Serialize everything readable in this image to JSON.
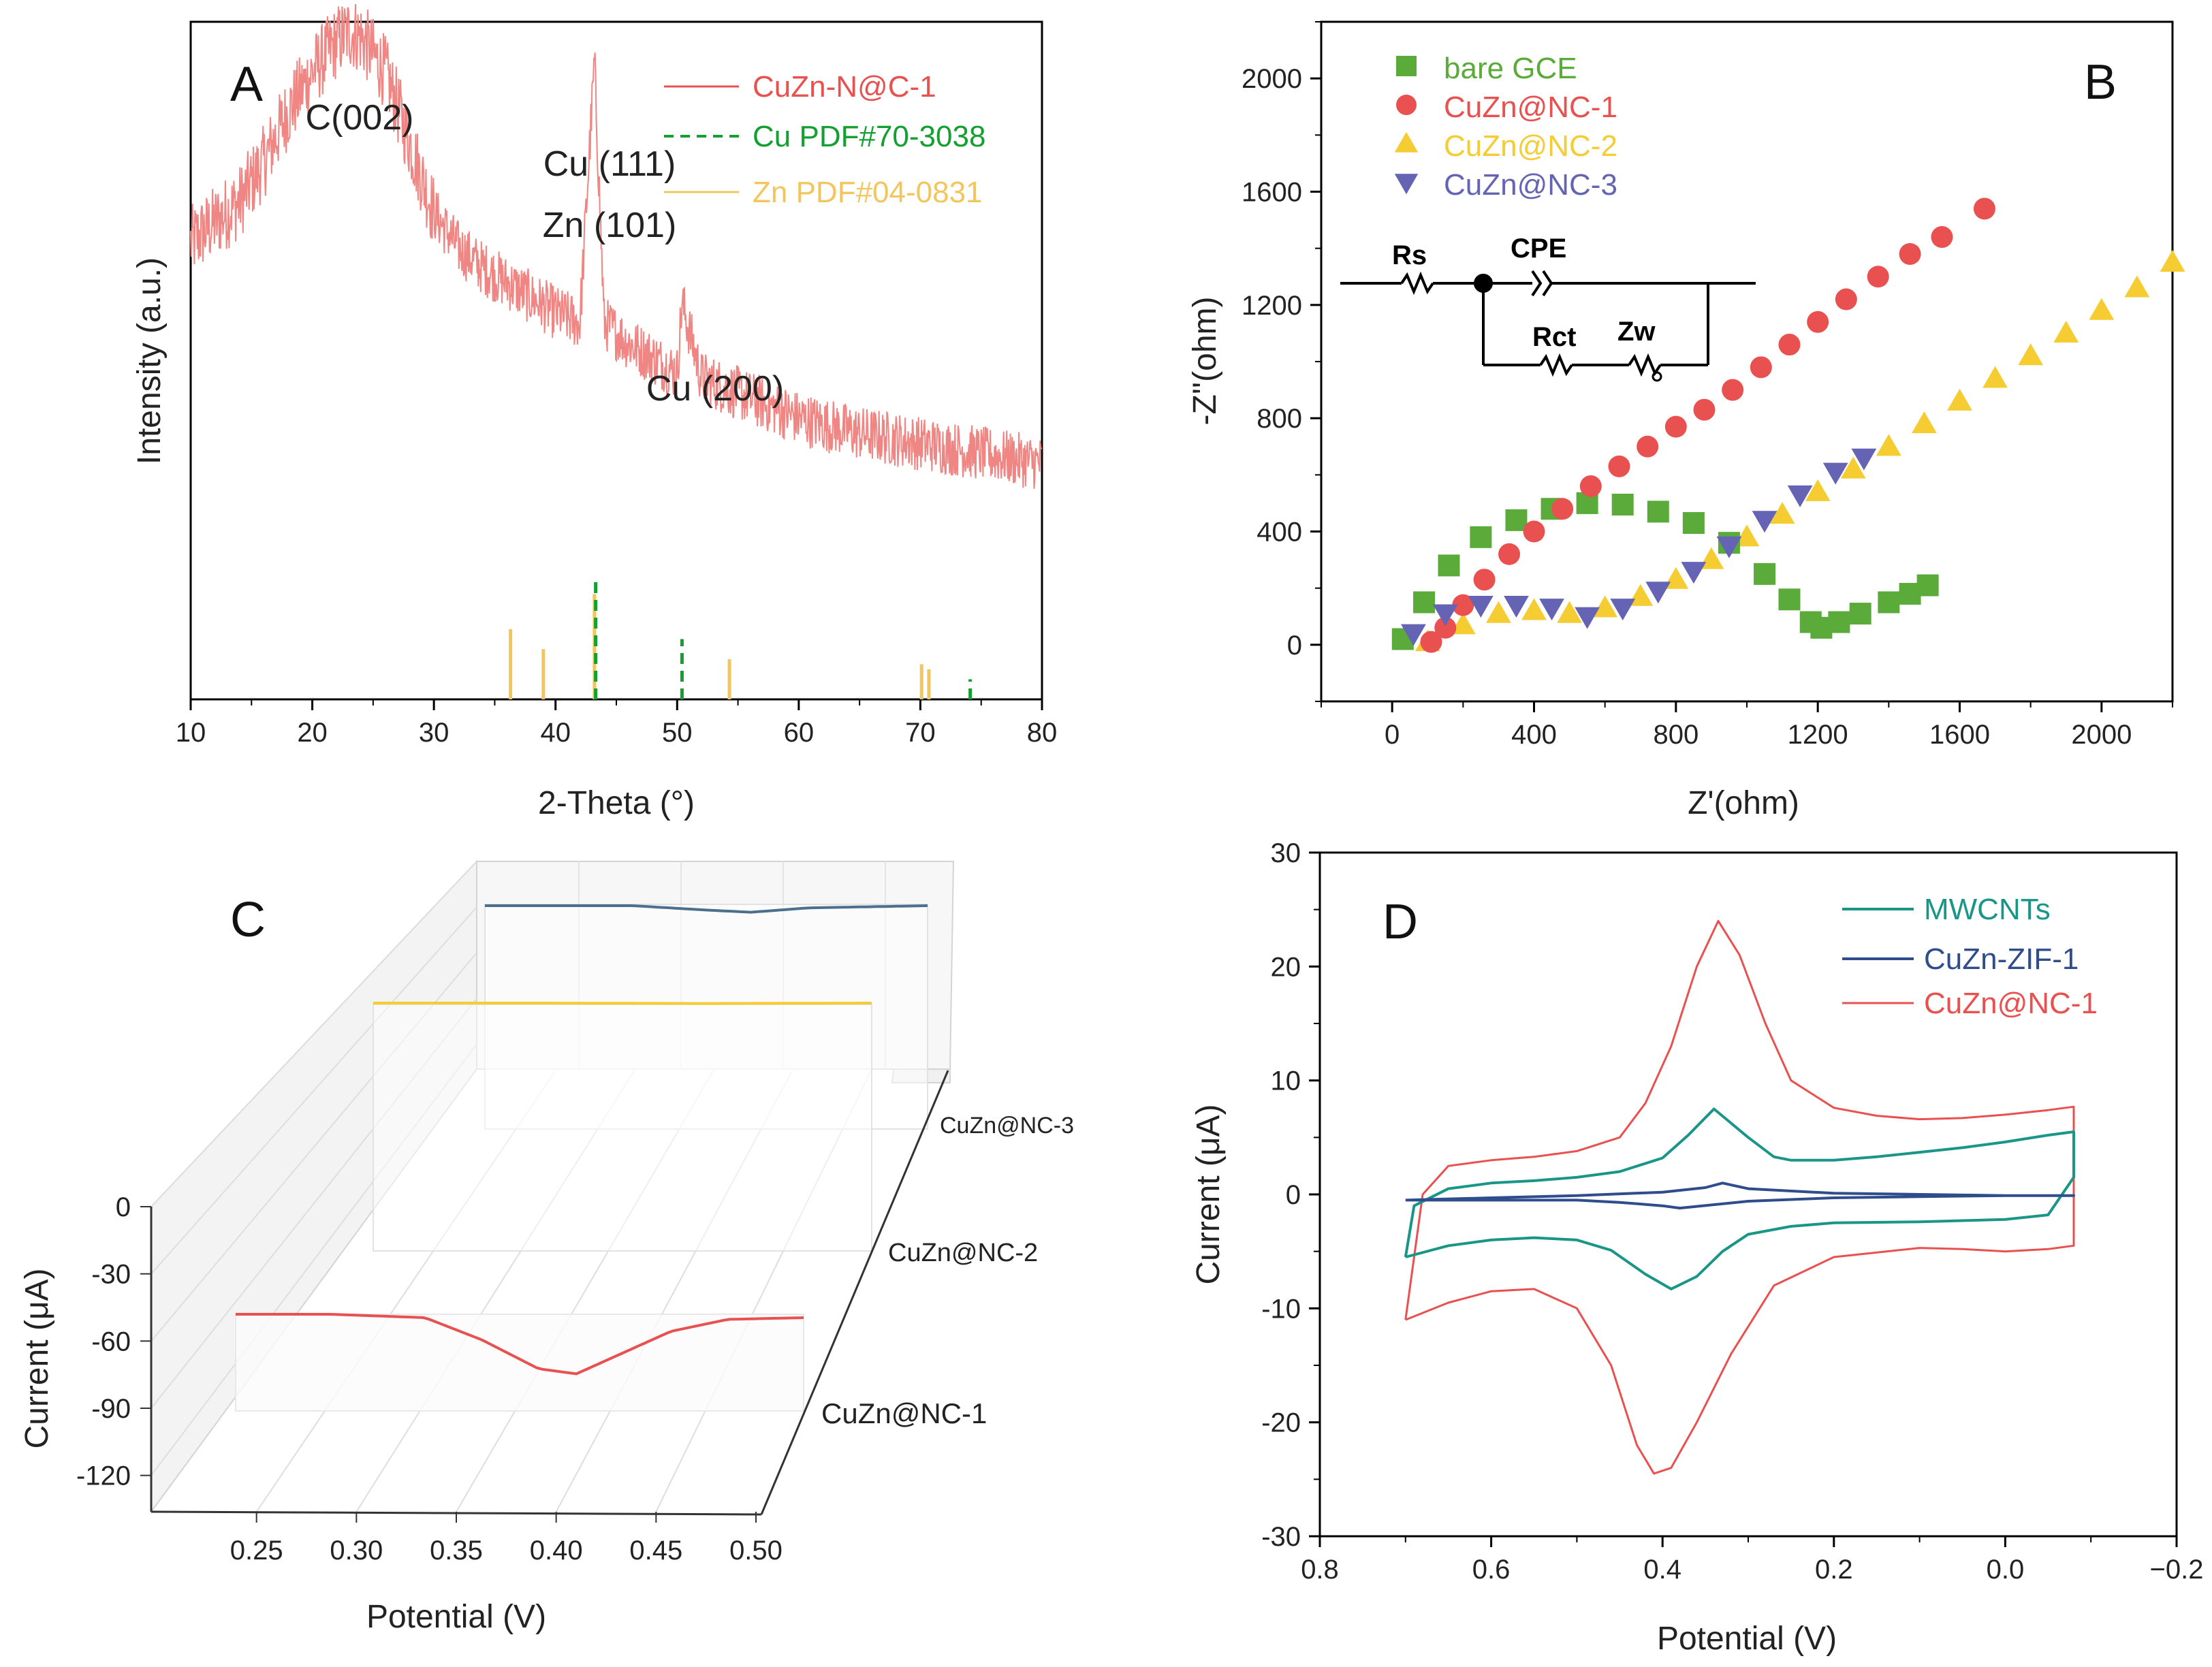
{
  "colors": {
    "red": "#e8514f",
    "red_light": "#f08683",
    "green": "#5aab3a",
    "green_dash": "#12a030",
    "yellow": "#f5cc32",
    "zn_line": "#f2c65c",
    "blue_purple": "#6564b4",
    "teal": "#1a9688",
    "navy": "#2f4c8c",
    "steel": "#4b6f8c"
  },
  "chart_data": [
    {
      "panel": "A",
      "type": "line",
      "xlabel": "2-Theta (°)",
      "ylabel": "Intensity (a.u.)",
      "xlim": [
        10,
        80
      ],
      "ylim": [
        -0.35,
        1.0
      ],
      "xticks": [
        10,
        20,
        30,
        40,
        50,
        60,
        70,
        80
      ],
      "xtick_labels": [
        "10",
        "20",
        "30",
        "40",
        "50",
        "60",
        "70",
        "80"
      ],
      "legend": [
        "CuZn-N@C-1",
        "Cu PDF#70-3038",
        "Zn PDF#04-0831"
      ],
      "series": [
        {
          "name": "CuZn-N@C-1",
          "type": "noisy-line",
          "x": [
            10,
            12,
            14,
            16,
            18,
            20,
            22,
            23,
            24,
            26,
            28,
            30,
            32,
            34,
            36,
            38,
            40,
            42,
            43.2,
            44,
            46,
            48,
            50,
            50.4,
            52,
            55,
            58,
            60,
            65,
            70,
            75,
            80
          ],
          "y": [
            0.56,
            0.6,
            0.64,
            0.72,
            0.82,
            0.9,
            0.96,
            0.98,
            0.97,
            0.9,
            0.76,
            0.62,
            0.55,
            0.51,
            0.48,
            0.45,
            0.42,
            0.4,
            0.92,
            0.4,
            0.36,
            0.33,
            0.3,
            0.44,
            0.29,
            0.26,
            0.23,
            0.21,
            0.18,
            0.16,
            0.14,
            0.12
          ]
        }
      ],
      "reference_lines": [
        {
          "name": "Cu PDF#70-3038",
          "style": "dashed",
          "positions": [
            43.3,
            50.4,
            74.1
          ],
          "heights": [
            0.24,
            0.12,
            0.04
          ]
        },
        {
          "name": "Zn PDF#04-0831",
          "style": "solid",
          "positions": [
            36.3,
            39.0,
            43.2,
            54.3,
            70.1,
            70.7
          ],
          "heights": [
            0.14,
            0.1,
            0.21,
            0.08,
            0.07,
            0.06
          ]
        }
      ],
      "annotations": [
        "C(002)",
        "Cu (111)",
        "Zn (101)",
        "Cu (200)"
      ]
    },
    {
      "panel": "B",
      "type": "scatter",
      "xlabel": "Z'(ohm)",
      "ylabel": "-Z''(ohm)",
      "xlim": [
        -200,
        2200
      ],
      "ylim": [
        -200,
        2200
      ],
      "xticks": [
        0,
        400,
        800,
        1200,
        1600,
        2000
      ],
      "xtick_labels": [
        "0",
        "400",
        "800",
        "1200",
        "1600",
        "2000"
      ],
      "yticks": [
        0,
        400,
        800,
        1200,
        1600,
        2000
      ],
      "ytick_labels": [
        "0",
        "400",
        "800",
        "1200",
        "1600",
        "2000"
      ],
      "legend": [
        "bare GCE",
        "CuZn@NC-1",
        "CuZn@NC-2",
        "CuZn@NC-3"
      ],
      "circuit_labels": [
        "Rs",
        "CPE",
        "Rct",
        "Zw"
      ],
      "series": [
        {
          "name": "bare GCE",
          "marker": "square",
          "x": [
            30,
            90,
            160,
            250,
            350,
            450,
            550,
            650,
            750,
            850,
            950,
            1050,
            1120,
            1180,
            1210,
            1260,
            1320,
            1400,
            1460,
            1510
          ],
          "y": [
            20,
            150,
            280,
            380,
            440,
            480,
            500,
            495,
            470,
            430,
            360,
            250,
            160,
            80,
            60,
            80,
            110,
            150,
            180,
            210
          ]
        },
        {
          "name": "CuZn@NC-1",
          "marker": "circle",
          "x": [
            110,
            150,
            200,
            260,
            330,
            400,
            480,
            560,
            640,
            720,
            800,
            880,
            960,
            1040,
            1120,
            1200,
            1280,
            1370,
            1460,
            1550,
            1670
          ],
          "y": [
            10,
            60,
            140,
            230,
            320,
            400,
            480,
            560,
            630,
            700,
            770,
            830,
            900,
            980,
            1060,
            1140,
            1220,
            1300,
            1380,
            1440,
            1540
          ]
        },
        {
          "name": "CuZn@NC-2",
          "marker": "triangle-up",
          "x": [
            100,
            200,
            300,
            400,
            500,
            600,
            700,
            800,
            900,
            1000,
            1100,
            1200,
            1300,
            1400,
            1500,
            1600,
            1700,
            1800,
            1900,
            2000,
            2100,
            2200
          ],
          "y": [
            10,
            70,
            110,
            120,
            110,
            130,
            170,
            230,
            300,
            380,
            460,
            540,
            620,
            700,
            780,
            860,
            940,
            1020,
            1100,
            1180,
            1260,
            1350
          ]
        },
        {
          "name": "CuZn@NC-3",
          "marker": "triangle-down",
          "x": [
            60,
            150,
            250,
            350,
            450,
            550,
            650,
            750,
            850,
            950,
            1050,
            1150,
            1250,
            1330
          ],
          "y": [
            40,
            110,
            140,
            140,
            130,
            100,
            130,
            190,
            260,
            350,
            440,
            530,
            610,
            660
          ]
        }
      ]
    },
    {
      "panel": "C",
      "type": "line",
      "projection": "3d",
      "xlabel": "Potential (V)",
      "ylabel": "Current (μA)",
      "xlim": [
        0.2,
        0.5
      ],
      "zlim": [
        -135,
        0
      ],
      "xticks": [
        0.25,
        0.3,
        0.35,
        0.4,
        0.45,
        0.5
      ],
      "xtick_labels": [
        "0.25",
        "0.30",
        "0.35",
        "0.40",
        "0.45",
        "0.50"
      ],
      "zticks": [
        0,
        -30,
        -60,
        -90,
        -120
      ],
      "ztick_labels": [
        "0",
        "-30",
        "-60",
        "-90",
        "-120"
      ],
      "categories": [
        "CuZn@NC-1",
        "CuZn@NC-2",
        "CuZn@NC-3"
      ],
      "series": [
        {
          "name": "CuZn@NC-1",
          "x": [
            0.2,
            0.25,
            0.3,
            0.33,
            0.36,
            0.38,
            0.4,
            0.43,
            0.46,
            0.5
          ],
          "y": [
            -60,
            -60,
            -62,
            -75,
            -92,
            -95,
            -85,
            -70,
            -63,
            -62
          ]
        },
        {
          "name": "CuZn@NC-2",
          "x": [
            0.2,
            0.3,
            0.4,
            0.5
          ],
          "y": [
            -1,
            -1,
            -1.5,
            -1
          ]
        },
        {
          "name": "CuZn@NC-3",
          "x": [
            0.2,
            0.3,
            0.35,
            0.38,
            0.42,
            0.5
          ],
          "y": [
            -2,
            -2,
            -4,
            -5,
            -3,
            -2
          ]
        }
      ]
    },
    {
      "panel": "D",
      "type": "line",
      "xlabel": "Potential (V)",
      "ylabel": "Current (μA)",
      "xlim": [
        0.8,
        -0.2
      ],
      "ylim": [
        -30,
        30
      ],
      "xticks": [
        0.8,
        0.6,
        0.4,
        0.2,
        0.0,
        -0.2
      ],
      "xtick_labels": [
        "0.8",
        "0.6",
        "0.4",
        "0.2",
        "0.0",
        "−0.2"
      ],
      "yticks": [
        30,
        20,
        10,
        0,
        -10,
        -20,
        -30
      ],
      "ytick_labels": [
        "30",
        "20",
        "10",
        "0",
        "-10",
        "-20",
        "-30"
      ],
      "legend": [
        "MWCNTs",
        "CuZn-ZIF-1",
        "CuZn@NC-1"
      ],
      "series": [
        {
          "name": "MWCNTs",
          "x": [
            0.7,
            0.69,
            0.65,
            0.6,
            0.55,
            0.5,
            0.45,
            0.4,
            0.37,
            0.34,
            0.3,
            0.27,
            0.25,
            0.2,
            0.15,
            0.1,
            0.05,
            0.0,
            -0.05,
            -0.08,
            -0.08,
            -0.05,
            0.0,
            0.1,
            0.2,
            0.25,
            0.3,
            0.33,
            0.36,
            0.39,
            0.42,
            0.46,
            0.5,
            0.55,
            0.6,
            0.65,
            0.7
          ],
          "y": [
            -5.5,
            -1,
            0.5,
            1,
            1.2,
            1.5,
            2,
            3.2,
            5.2,
            7.5,
            5,
            3.3,
            3,
            3,
            3.3,
            3.7,
            4.1,
            4.6,
            5.2,
            5.5,
            1.5,
            -1.8,
            -2.2,
            -2.4,
            -2.5,
            -2.8,
            -3.5,
            -5,
            -7.2,
            -8.3,
            -7,
            -4.9,
            -4,
            -3.8,
            -4,
            -4.5,
            -5.5
          ]
        },
        {
          "name": "CuZn-ZIF-1",
          "x": [
            0.7,
            0.6,
            0.5,
            0.4,
            0.35,
            0.33,
            0.3,
            0.2,
            0.1,
            0.0,
            -0.08,
            -0.08,
            0.0,
            0.1,
            0.2,
            0.3,
            0.38,
            0.4,
            0.45,
            0.5,
            0.6,
            0.7
          ],
          "y": [
            -0.5,
            -0.3,
            -0.1,
            0.2,
            0.6,
            1.0,
            0.5,
            0.1,
            0.0,
            -0.1,
            -0.1,
            -0.1,
            -0.1,
            -0.2,
            -0.3,
            -0.6,
            -1.2,
            -1.0,
            -0.7,
            -0.5,
            -0.5,
            -0.5
          ]
        },
        {
          "name": "CuZn@NC-1",
          "x": [
            0.7,
            0.68,
            0.65,
            0.6,
            0.55,
            0.5,
            0.45,
            0.42,
            0.39,
            0.36,
            0.335,
            0.31,
            0.28,
            0.25,
            0.2,
            0.15,
            0.1,
            0.05,
            0.0,
            -0.05,
            -0.08,
            -0.08,
            -0.05,
            0.0,
            0.05,
            0.1,
            0.2,
            0.27,
            0.32,
            0.36,
            0.39,
            0.41,
            0.43,
            0.46,
            0.5,
            0.55,
            0.6,
            0.65,
            0.7
          ],
          "y": [
            -11,
            0,
            2.5,
            3,
            3.3,
            3.8,
            5,
            8,
            13,
            20,
            24,
            21,
            15,
            10,
            7.6,
            6.9,
            6.6,
            6.7,
            7.0,
            7.4,
            7.7,
            -4.5,
            -4.8,
            -5,
            -4.8,
            -4.7,
            -5.5,
            -8,
            -14,
            -20,
            -24,
            -24.5,
            -22,
            -15,
            -10,
            -8.3,
            -8.5,
            -9.5,
            -11
          ]
        }
      ]
    }
  ]
}
